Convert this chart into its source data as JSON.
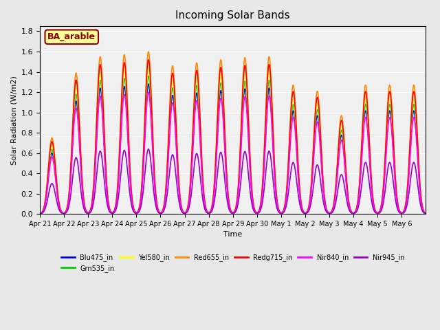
{
  "title": "Incoming Solar Bands",
  "xlabel": "Time",
  "ylabel": "Solar Radiation (W/m2)",
  "annotation_text": "BA_arable",
  "annotation_color": "#8B0000",
  "annotation_bg": "#FFFF99",
  "ylim": [
    0,
    1.85
  ],
  "yticks": [
    0.0,
    0.2,
    0.4,
    0.6,
    0.8,
    1.0,
    1.2,
    1.4,
    1.6,
    1.8
  ],
  "bg_color": "#E8E8E8",
  "plot_bg": "#F0F0F0",
  "series": [
    {
      "name": "Blu475_in",
      "color": "#0000FF",
      "lw": 1.2,
      "scale": 0.8
    },
    {
      "name": "Grn535_in",
      "color": "#00CC00",
      "lw": 1.2,
      "scale": 0.85
    },
    {
      "name": "Yel580_in",
      "color": "#FFFF00",
      "lw": 1.2,
      "scale": 0.9
    },
    {
      "name": "Red655_in",
      "color": "#FF8800",
      "lw": 1.2,
      "scale": 1.0
    },
    {
      "name": "Redg715_in",
      "color": "#FF0000",
      "lw": 1.2,
      "scale": 0.95
    },
    {
      "name": "Nir840_in",
      "color": "#FF00FF",
      "lw": 1.2,
      "scale": 0.75
    },
    {
      "name": "Nir945_in",
      "color": "#9900CC",
      "lw": 1.2,
      "scale": 0.4
    }
  ],
  "date_labels": [
    "Apr 21",
    "Apr 22",
    "Apr 23",
    "Apr 24",
    "Apr 25",
    "Apr 26",
    "Apr 27",
    "Apr 28",
    "Apr 29",
    "Apr 30",
    "May 1",
    "May 2",
    "May 3",
    "May 4",
    "May 5",
    "May 6"
  ],
  "peak_values": [
    0.75,
    1.39,
    1.55,
    1.57,
    1.6,
    1.46,
    1.49,
    1.52,
    1.54,
    1.55,
    1.27,
    1.21,
    0.97,
    1.27,
    1.27,
    1.27
  ]
}
